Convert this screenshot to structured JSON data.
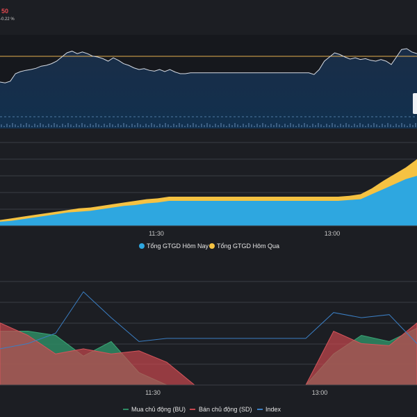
{
  "header": {
    "price_fragment": "50",
    "change_fragment": "-0.22 %"
  },
  "colors": {
    "background": "#1c1e23",
    "panel_bg": "#16181d",
    "price_line": "#d7dde6",
    "reference_line": "#e7b04f",
    "today": "#2ea7e0",
    "yesterday": "#f5c242",
    "buy": "#2e8b64",
    "sell": "#c9474f",
    "index_line": "#3b7fc4",
    "grid": "#3a3d44",
    "text": "#e6e6e6",
    "axis_text": "#c9c9c9"
  },
  "price_chart": {
    "type": "line",
    "time_ticks": [
      "11:30",
      "13:00"
    ],
    "series_shape": [
      0.8,
      0.82,
      0.78,
      0.6,
      0.55,
      0.52,
      0.5,
      0.47,
      0.42,
      0.4,
      0.36,
      0.3,
      0.2,
      0.1,
      0.06,
      0.12,
      0.08,
      0.12,
      0.18,
      0.2,
      0.24,
      0.3,
      0.22,
      0.28,
      0.36,
      0.4,
      0.46,
      0.5,
      0.48,
      0.52,
      0.54,
      0.5,
      0.55,
      0.5,
      0.56,
      0.6,
      0.6,
      0.58,
      0.58,
      0.58,
      0.58,
      0.58,
      0.58,
      0.58,
      0.58,
      0.58,
      0.58,
      0.58,
      0.58,
      0.58,
      0.58,
      0.58,
      0.58,
      0.58,
      0.58,
      0.58,
      0.58,
      0.58,
      0.58,
      0.58,
      0.58,
      0.62,
      0.5,
      0.3,
      0.2,
      0.1,
      0.14,
      0.2,
      0.25,
      0.22,
      0.26,
      0.24,
      0.28,
      0.3,
      0.26,
      0.3,
      0.38,
      0.2,
      0.02,
      0.0,
      0.08,
      0.12
    ]
  },
  "value_chart": {
    "type": "area",
    "time_ticks": [
      "11:30",
      "13:00"
    ],
    "legend": [
      "Tổng GTGD Hôm Nay",
      "Tổng GTGD Hôm Qua"
    ],
    "today": [
      5,
      6,
      8,
      10,
      12,
      14,
      16,
      17,
      18,
      20,
      22,
      24,
      25,
      27,
      28,
      30,
      30,
      30,
      30,
      30,
      30,
      30,
      30,
      30,
      30,
      30,
      30,
      30,
      30,
      30,
      30,
      31,
      32,
      38,
      44,
      50,
      56,
      60
    ],
    "yesterday": [
      7,
      9,
      11,
      13,
      15,
      17,
      19,
      21,
      22,
      24,
      26,
      28,
      30,
      32,
      33,
      35,
      35,
      35,
      35,
      35,
      35,
      35,
      35,
      35,
      35,
      35,
      35,
      35,
      35,
      35,
      35,
      36,
      38,
      45,
      54,
      62,
      70,
      80
    ]
  },
  "flow_chart": {
    "type": "area",
    "time_ticks": [
      "11:30",
      "13:00"
    ],
    "legend": [
      "Mua chủ động (BU)",
      "Bán chủ động (SD)",
      "Index"
    ],
    "buy": [
      0.52,
      0.52,
      0.48,
      0.28,
      0.42,
      0.12,
      0.0,
      0.0,
      0.0,
      0.0,
      0.0,
      0.0,
      0.3,
      0.48,
      0.42,
      0.55
    ],
    "sell": [
      0.6,
      0.48,
      0.3,
      0.35,
      0.3,
      0.33,
      0.22,
      0.0,
      0.0,
      0.0,
      0.0,
      0.0,
      0.52,
      0.4,
      0.38,
      0.6
    ],
    "index": [
      0.35,
      0.4,
      0.5,
      0.9,
      0.65,
      0.42,
      0.45,
      0.45,
      0.45,
      0.45,
      0.45,
      0.45,
      0.7,
      0.65,
      0.68,
      0.4
    ]
  }
}
